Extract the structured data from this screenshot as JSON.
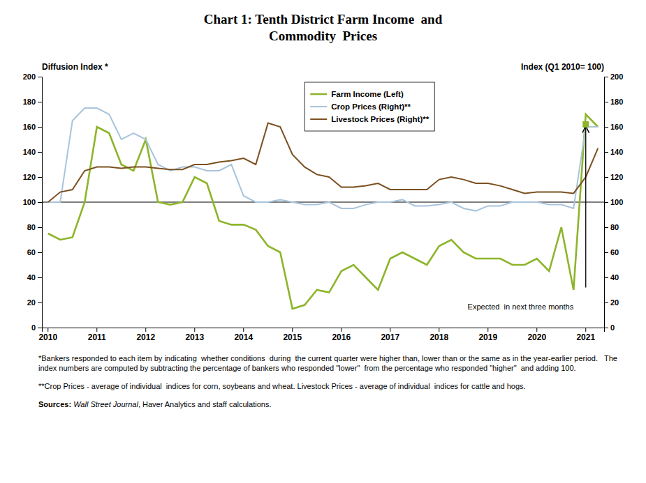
{
  "chart_data": {
    "type": "line",
    "title": [
      "Chart 1: Tenth District Farm Income  and",
      "Commodity  Prices"
    ],
    "y_label": "Diffusion Index *",
    "y2_label": "Index (Q1 2010= 100)",
    "categories": [
      "2010",
      null,
      null,
      null,
      "2011",
      null,
      null,
      null,
      "2012",
      null,
      null,
      null,
      "2013",
      null,
      null,
      null,
      "2014",
      null,
      null,
      null,
      "2015",
      null,
      null,
      null,
      "2016",
      null,
      null,
      null,
      "2017",
      null,
      null,
      null,
      "2018",
      null,
      null,
      null,
      "2019",
      null,
      null,
      null,
      "2020",
      null,
      null,
      null,
      "2021",
      null
    ],
    "series": [
      {
        "name": "Farm Income (Left)",
        "color": "#8DB52A",
        "values": [
          75,
          70,
          72,
          100,
          160,
          155,
          130,
          125,
          150,
          100,
          98,
          100,
          120,
          115,
          85,
          82,
          82,
          78,
          65,
          60,
          15,
          18,
          30,
          28,
          45,
          50,
          40,
          30,
          55,
          60,
          55,
          50,
          65,
          70,
          60,
          55,
          55,
          55,
          50,
          50,
          55,
          45,
          80,
          30,
          170,
          160
        ]
      },
      {
        "name": "Crop Prices (Right)**",
        "color": "#A8C4DC",
        "axis": "y2",
        "values": [
          100,
          100,
          165,
          175,
          175,
          170,
          150,
          155,
          150,
          130,
          125,
          128,
          128,
          125,
          125,
          130,
          105,
          100,
          100,
          102,
          100,
          98,
          98,
          100,
          95,
          95,
          98,
          100,
          100,
          102,
          97,
          97,
          98,
          100,
          95,
          93,
          97,
          97,
          100,
          100,
          100,
          98,
          98,
          95,
          160,
          160
        ]
      },
      {
        "name": "Livestock Prices (Right)**",
        "color": "#7B5020",
        "axis": "y2",
        "values": [
          100,
          108,
          110,
          125,
          128,
          128,
          127,
          128,
          128,
          127,
          126,
          126,
          130,
          130,
          132,
          133,
          135,
          130,
          163,
          160,
          138,
          128,
          122,
          120,
          112,
          112,
          113,
          115,
          110,
          110,
          110,
          110,
          118,
          120,
          118,
          115,
          115,
          113,
          110,
          107,
          108,
          108,
          108,
          107,
          120,
          143
        ]
      }
    ],
    "ylim": [
      0,
      200
    ],
    "yticks": [
      0,
      20,
      40,
      60,
      80,
      100,
      120,
      140,
      160,
      180,
      200
    ],
    "y2lim": [
      0,
      200
    ],
    "y2ticks": [
      0,
      20,
      40,
      60,
      80,
      100,
      120,
      140,
      160,
      180,
      200
    ],
    "hline": 100,
    "annotations": [
      {
        "text": "Expected  in next three months",
        "x": 44,
        "y": 20,
        "arrow_from": 32,
        "arrow_to": 160,
        "marker_value": 162
      }
    ],
    "notes": [
      "*Bankers responded to each item by indicating  whether conditions  during  the current quarter were higher than, lower than or the same as in the year-earlier period.   The index numbers are computed by subtracting the percentage of bankers who responded \"lower\"  from the percentage who responded \"higher\"  and adding 100.",
      "**Crop Prices - average of individual  indices for corn, soybeans and wheat. Livestock Prices - average of individual  indices for cattle and hogs."
    ],
    "source": [
      "Sources: ",
      "Wall Street Journal",
      ", Haver Analytics and staff calculations."
    ],
    "grid": false,
    "legend": "upper center"
  }
}
